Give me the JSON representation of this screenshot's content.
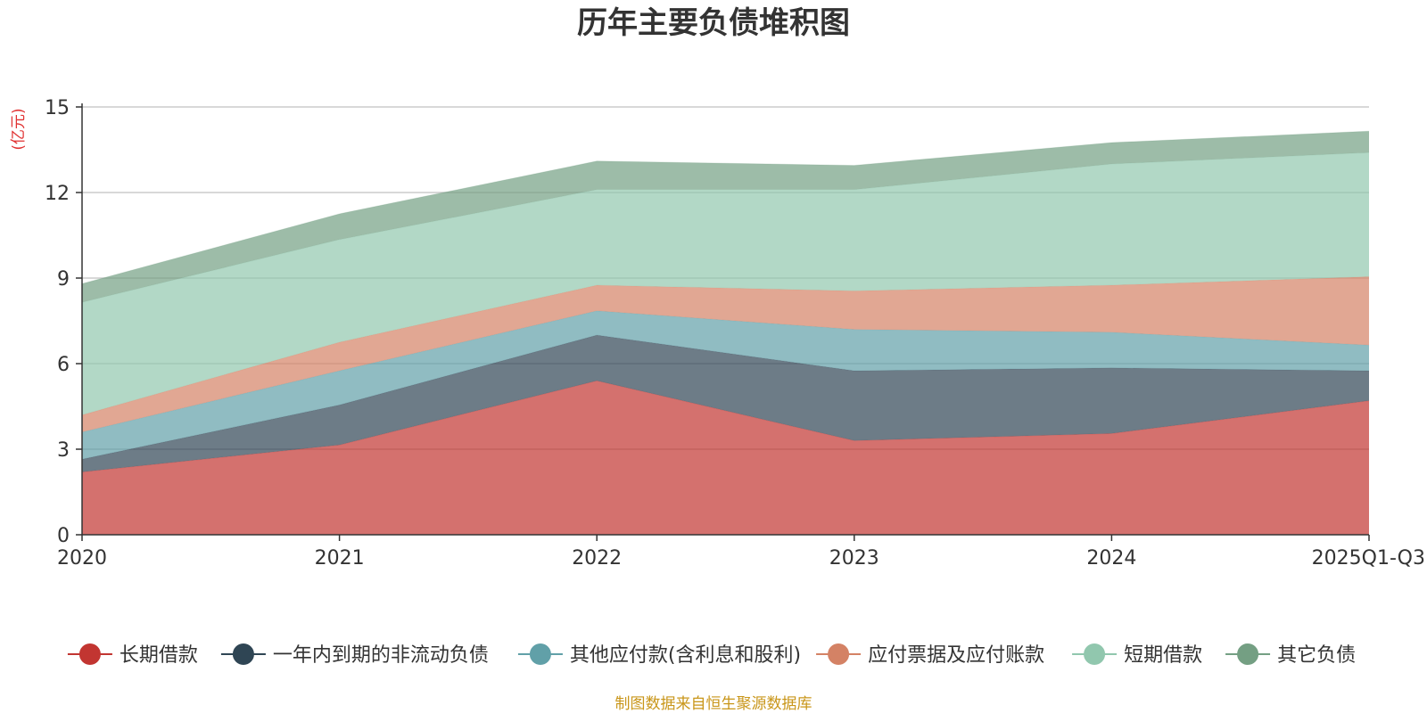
{
  "chart_data": {
    "type": "area",
    "stacked": true,
    "title": "历年主要负债堆积图",
    "unit_label": "(亿元)",
    "categories": [
      "2020",
      "2021",
      "2022",
      "2023",
      "2024",
      "2025Q1-Q3"
    ],
    "ylim": [
      0,
      15
    ],
    "yticks": [
      0,
      3,
      6,
      9,
      12,
      15
    ],
    "grid": true,
    "legend_position": "bottom",
    "series": [
      {
        "name": "长期借款",
        "values": [
          2.2,
          3.15,
          5.4,
          3.3,
          3.55,
          4.7
        ],
        "color": "#c23531"
      },
      {
        "name": "一年内到期的非流动负债",
        "values": [
          0.45,
          1.4,
          1.6,
          2.45,
          2.3,
          1.05
        ],
        "color": "#2f4554"
      },
      {
        "name": "其他应付款(含利息和股利)",
        "values": [
          0.95,
          1.2,
          0.85,
          1.45,
          1.25,
          0.9
        ],
        "color": "#61a0a8"
      },
      {
        "name": "应付票据及应付账款",
        "values": [
          0.6,
          1.0,
          0.9,
          1.35,
          1.65,
          2.4
        ],
        "color": "#d48265"
      },
      {
        "name": "短期借款",
        "values": [
          3.95,
          3.6,
          3.35,
          3.55,
          4.25,
          4.35
        ],
        "color": "#91c7ae"
      },
      {
        "name": "其它负债",
        "values": [
          0.65,
          0.9,
          1.0,
          0.85,
          0.75,
          0.75
        ],
        "color": "#749f83"
      }
    ]
  },
  "footer": {
    "source": "制图数据来自恒生聚源数据库"
  }
}
